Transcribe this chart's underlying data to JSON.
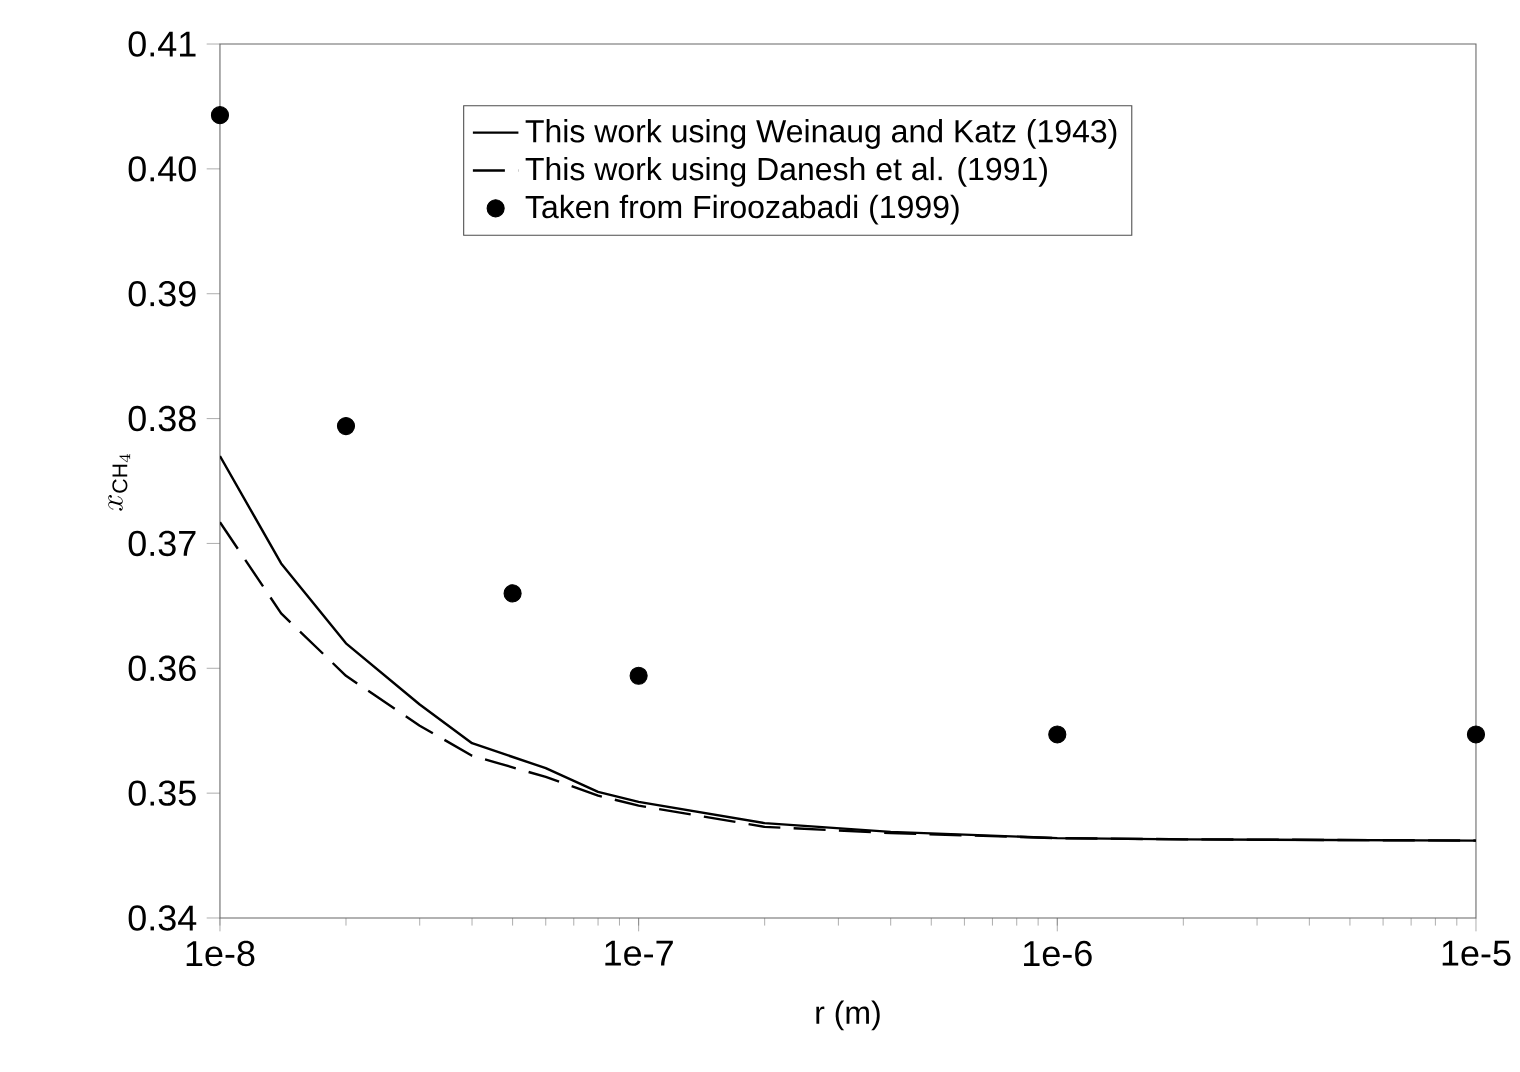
{
  "chart_data": {
    "type": "line",
    "xlabel": "r (m)",
    "ylabel": "x_{\\mathrm{CH}_{4}}",
    "log": "x",
    "xlim": [
      1e-08,
      1e-05
    ],
    "xticks": [
      {
        "value": 1e-08,
        "label": "1e-8"
      },
      {
        "value": 1e-07,
        "label": "1e-7"
      },
      {
        "value": 1e-06,
        "label": "1e-6"
      },
      {
        "value": 1e-05,
        "label": "1e-5"
      }
    ],
    "ylim": [
      0.34,
      0.41
    ],
    "yticks": [
      {
        "value": 0.34,
        "label": "0.34"
      },
      {
        "value": 0.35,
        "label": "0.35"
      },
      {
        "value": 0.36,
        "label": "0.36"
      },
      {
        "value": 0.37,
        "label": "0.37"
      },
      {
        "value": 0.38,
        "label": "0.38"
      },
      {
        "value": 0.39,
        "label": "0.39"
      },
      {
        "value": 0.4,
        "label": "0.40"
      },
      {
        "value": 0.41,
        "label": "0.41"
      }
    ],
    "legend": "top",
    "grid": false,
    "series": [
      {
        "name": "This work using Weinaug and Katz (1943)",
        "color": "#000000",
        "line_style": "solid",
        "marker": "none",
        "x": [
          1e-08,
          1.4e-08,
          2e-08,
          3e-08,
          4e-08,
          6e-08,
          8e-08,
          1e-07,
          2e-07,
          4e-07,
          1e-06,
          2e-06,
          1e-05
        ],
        "values": [
          0.377,
          0.3684,
          0.362,
          0.3571,
          0.354,
          0.352,
          0.3501,
          0.3493,
          0.3476,
          0.3469,
          0.3464,
          0.3463,
          0.3462
        ]
      },
      {
        "name": "This work using Danesh et al. (1991)",
        "color": "#000000",
        "line_style": "dashed",
        "marker": "none",
        "x": [
          1e-08,
          1.4e-08,
          2e-08,
          3e-08,
          4e-08,
          6e-08,
          8e-08,
          1e-07,
          2e-07,
          4e-07,
          1e-06,
          2e-06,
          1e-05
        ],
        "values": [
          0.3717,
          0.3644,
          0.3594,
          0.3554,
          0.353,
          0.3513,
          0.3498,
          0.349,
          0.3473,
          0.3468,
          0.3464,
          0.3463,
          0.3462
        ]
      },
      {
        "name": "Taken from Firoozabadi (1999)",
        "type": "scatter",
        "color": "#000000",
        "marker": "circle",
        "x": [
          1e-08,
          2e-08,
          5e-08,
          1e-07,
          1e-06,
          1e-05
        ],
        "values": [
          0.4043,
          0.3794,
          0.366,
          0.3594,
          0.3547,
          0.3547
        ]
      }
    ]
  }
}
